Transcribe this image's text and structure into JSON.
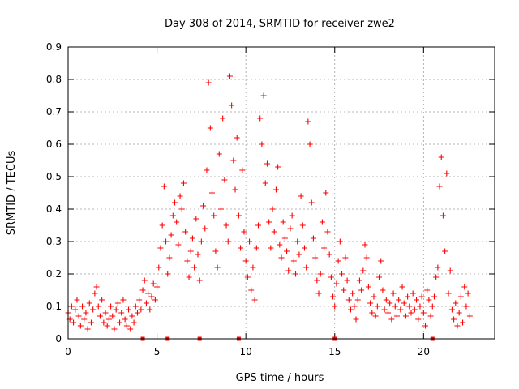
{
  "chart_data": {
    "type": "scatter",
    "title": "Day 308 of 2014, SRMTID for receiver zwe2",
    "xlabel": "GPS time / hours",
    "ylabel": "SRMTID / TECUs",
    "xlim": [
      0,
      24
    ],
    "ylim": [
      0,
      0.9
    ],
    "xticks": [
      0,
      5,
      10,
      15,
      20
    ],
    "yticks": [
      0,
      0.1,
      0.2,
      0.3,
      0.4,
      0.5,
      0.6,
      0.7,
      0.8,
      0.9
    ],
    "xtick_labels": [
      "0",
      "5",
      "10",
      "15",
      "20"
    ],
    "ytick_labels": [
      "0",
      "0.1",
      "0.2",
      "0.3",
      "0.4",
      "0.5",
      "0.6",
      "0.7",
      "0.8",
      "0.9"
    ],
    "grid": true,
    "marker": "+",
    "color": "#ff0000",
    "gap_markers": [
      4.2,
      5.6,
      7.4,
      9.6,
      15.0,
      20.5
    ],
    "series": [
      {
        "name": "SRMTID",
        "points": [
          [
            0.0,
            0.08
          ],
          [
            0.1,
            0.06
          ],
          [
            0.2,
            0.1
          ],
          [
            0.3,
            0.05
          ],
          [
            0.4,
            0.09
          ],
          [
            0.5,
            0.12
          ],
          [
            0.6,
            0.07
          ],
          [
            0.7,
            0.04
          ],
          [
            0.8,
            0.1
          ],
          [
            0.9,
            0.06
          ],
          [
            1.0,
            0.08
          ],
          [
            1.1,
            0.03
          ],
          [
            1.2,
            0.11
          ],
          [
            1.3,
            0.05
          ],
          [
            1.4,
            0.09
          ],
          [
            1.5,
            0.14
          ],
          [
            1.6,
            0.16
          ],
          [
            1.7,
            0.1
          ],
          [
            1.8,
            0.07
          ],
          [
            1.9,
            0.12
          ],
          [
            2.0,
            0.05
          ],
          [
            2.1,
            0.08
          ],
          [
            2.2,
            0.04
          ],
          [
            2.3,
            0.06
          ],
          [
            2.4,
            0.1
          ],
          [
            2.5,
            0.07
          ],
          [
            2.6,
            0.03
          ],
          [
            2.7,
            0.09
          ],
          [
            2.8,
            0.11
          ],
          [
            2.9,
            0.05
          ],
          [
            3.0,
            0.08
          ],
          [
            3.1,
            0.12
          ],
          [
            3.2,
            0.06
          ],
          [
            3.3,
            0.04
          ],
          [
            3.4,
            0.09
          ],
          [
            3.5,
            0.03
          ],
          [
            3.6,
            0.07
          ],
          [
            3.7,
            0.05
          ],
          [
            3.8,
            0.1
          ],
          [
            3.9,
            0.08
          ],
          [
            4.0,
            0.12
          ],
          [
            4.1,
            0.09
          ],
          [
            4.2,
            0.15
          ],
          [
            4.3,
            0.18
          ],
          [
            4.4,
            0.11
          ],
          [
            4.5,
            0.14
          ],
          [
            4.6,
            0.09
          ],
          [
            4.7,
            0.13
          ],
          [
            4.8,
            0.17
          ],
          [
            4.9,
            0.12
          ],
          [
            5.0,
            0.16
          ],
          [
            5.1,
            0.22
          ],
          [
            5.2,
            0.28
          ],
          [
            5.3,
            0.35
          ],
          [
            5.4,
            0.47
          ],
          [
            5.5,
            0.3
          ],
          [
            5.6,
            0.2
          ],
          [
            5.7,
            0.25
          ],
          [
            5.8,
            0.32
          ],
          [
            5.9,
            0.38
          ],
          [
            6.0,
            0.42
          ],
          [
            6.1,
            0.36
          ],
          [
            6.2,
            0.29
          ],
          [
            6.3,
            0.44
          ],
          [
            6.4,
            0.4
          ],
          [
            6.5,
            0.48
          ],
          [
            6.6,
            0.33
          ],
          [
            6.7,
            0.24
          ],
          [
            6.8,
            0.19
          ],
          [
            6.9,
            0.27
          ],
          [
            7.0,
            0.31
          ],
          [
            7.1,
            0.22
          ],
          [
            7.2,
            0.37
          ],
          [
            7.3,
            0.26
          ],
          [
            7.4,
            0.18
          ],
          [
            7.5,
            0.3
          ],
          [
            7.6,
            0.41
          ],
          [
            7.7,
            0.34
          ],
          [
            7.8,
            0.52
          ],
          [
            7.9,
            0.79
          ],
          [
            8.0,
            0.65
          ],
          [
            8.1,
            0.45
          ],
          [
            8.2,
            0.38
          ],
          [
            8.3,
            0.27
          ],
          [
            8.4,
            0.22
          ],
          [
            8.5,
            0.57
          ],
          [
            8.6,
            0.4
          ],
          [
            8.7,
            0.68
          ],
          [
            8.8,
            0.49
          ],
          [
            8.9,
            0.35
          ],
          [
            9.0,
            0.3
          ],
          [
            9.1,
            0.81
          ],
          [
            9.2,
            0.72
          ],
          [
            9.3,
            0.55
          ],
          [
            9.4,
            0.46
          ],
          [
            9.5,
            0.62
          ],
          [
            9.6,
            0.38
          ],
          [
            9.7,
            0.28
          ],
          [
            9.8,
            0.52
          ],
          [
            9.9,
            0.33
          ],
          [
            10.0,
            0.24
          ],
          [
            10.1,
            0.19
          ],
          [
            10.2,
            0.3
          ],
          [
            10.3,
            0.15
          ],
          [
            10.4,
            0.22
          ],
          [
            10.5,
            0.12
          ],
          [
            10.6,
            0.28
          ],
          [
            10.7,
            0.35
          ],
          [
            10.8,
            0.68
          ],
          [
            10.9,
            0.6
          ],
          [
            11.0,
            0.75
          ],
          [
            11.1,
            0.48
          ],
          [
            11.2,
            0.54
          ],
          [
            11.3,
            0.36
          ],
          [
            11.4,
            0.28
          ],
          [
            11.5,
            0.4
          ],
          [
            11.6,
            0.33
          ],
          [
            11.7,
            0.46
          ],
          [
            11.8,
            0.53
          ],
          [
            11.9,
            0.29
          ],
          [
            12.0,
            0.25
          ],
          [
            12.1,
            0.36
          ],
          [
            12.2,
            0.31
          ],
          [
            12.3,
            0.27
          ],
          [
            12.4,
            0.21
          ],
          [
            12.5,
            0.34
          ],
          [
            12.6,
            0.38
          ],
          [
            12.7,
            0.24
          ],
          [
            12.8,
            0.2
          ],
          [
            12.9,
            0.3
          ],
          [
            13.0,
            0.26
          ],
          [
            13.1,
            0.44
          ],
          [
            13.2,
            0.35
          ],
          [
            13.3,
            0.28
          ],
          [
            13.4,
            0.22
          ],
          [
            13.5,
            0.67
          ],
          [
            13.6,
            0.6
          ],
          [
            13.7,
            0.42
          ],
          [
            13.8,
            0.31
          ],
          [
            13.9,
            0.25
          ],
          [
            14.0,
            0.18
          ],
          [
            14.1,
            0.14
          ],
          [
            14.2,
            0.2
          ],
          [
            14.3,
            0.36
          ],
          [
            14.4,
            0.28
          ],
          [
            14.5,
            0.45
          ],
          [
            14.6,
            0.33
          ],
          [
            14.7,
            0.26
          ],
          [
            14.8,
            0.19
          ],
          [
            14.9,
            0.13
          ],
          [
            15.0,
            0.1
          ],
          [
            15.1,
            0.17
          ],
          [
            15.2,
            0.24
          ],
          [
            15.3,
            0.3
          ],
          [
            15.4,
            0.2
          ],
          [
            15.5,
            0.15
          ],
          [
            15.6,
            0.25
          ],
          [
            15.7,
            0.18
          ],
          [
            15.8,
            0.12
          ],
          [
            15.9,
            0.09
          ],
          [
            16.0,
            0.14
          ],
          [
            16.1,
            0.1
          ],
          [
            16.2,
            0.06
          ],
          [
            16.3,
            0.12
          ],
          [
            16.4,
            0.18
          ],
          [
            16.5,
            0.15
          ],
          [
            16.6,
            0.21
          ],
          [
            16.7,
            0.29
          ],
          [
            16.8,
            0.25
          ],
          [
            16.9,
            0.16
          ],
          [
            17.0,
            0.11
          ],
          [
            17.1,
            0.08
          ],
          [
            17.2,
            0.13
          ],
          [
            17.3,
            0.07
          ],
          [
            17.4,
            0.1
          ],
          [
            17.5,
            0.19
          ],
          [
            17.6,
            0.24
          ],
          [
            17.7,
            0.15
          ],
          [
            17.8,
            0.09
          ],
          [
            17.9,
            0.12
          ],
          [
            18.0,
            0.08
          ],
          [
            18.1,
            0.11
          ],
          [
            18.2,
            0.06
          ],
          [
            18.3,
            0.14
          ],
          [
            18.4,
            0.1
          ],
          [
            18.5,
            0.07
          ],
          [
            18.6,
            0.12
          ],
          [
            18.7,
            0.09
          ],
          [
            18.8,
            0.16
          ],
          [
            18.9,
            0.11
          ],
          [
            19.0,
            0.07
          ],
          [
            19.1,
            0.13
          ],
          [
            19.2,
            0.1
          ],
          [
            19.3,
            0.08
          ],
          [
            19.4,
            0.14
          ],
          [
            19.5,
            0.09
          ],
          [
            19.6,
            0.12
          ],
          [
            19.7,
            0.06
          ],
          [
            19.8,
            0.1
          ],
          [
            19.9,
            0.13
          ],
          [
            20.0,
            0.08
          ],
          [
            20.1,
            0.04
          ],
          [
            20.2,
            0.15
          ],
          [
            20.3,
            0.12
          ],
          [
            20.4,
            0.07
          ],
          [
            20.5,
            0.1
          ],
          [
            20.6,
            0.13
          ],
          [
            20.7,
            0.19
          ],
          [
            20.8,
            0.22
          ],
          [
            20.9,
            0.47
          ],
          [
            21.0,
            0.56
          ],
          [
            21.1,
            0.38
          ],
          [
            21.2,
            0.27
          ],
          [
            21.3,
            0.51
          ],
          [
            21.4,
            0.14
          ],
          [
            21.5,
            0.21
          ],
          [
            21.6,
            0.09
          ],
          [
            21.7,
            0.06
          ],
          [
            21.8,
            0.11
          ],
          [
            21.9,
            0.04
          ],
          [
            22.0,
            0.08
          ],
          [
            22.1,
            0.13
          ],
          [
            22.2,
            0.05
          ],
          [
            22.3,
            0.16
          ],
          [
            22.4,
            0.1
          ],
          [
            22.5,
            0.14
          ],
          [
            22.6,
            0.07
          ]
        ]
      }
    ]
  }
}
